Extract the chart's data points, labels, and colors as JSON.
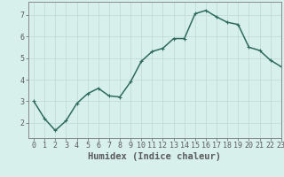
{
  "x": [
    0,
    1,
    2,
    3,
    4,
    5,
    6,
    7,
    8,
    9,
    10,
    11,
    12,
    13,
    14,
    15,
    16,
    17,
    18,
    19,
    20,
    21,
    22,
    23
  ],
  "y": [
    3.0,
    2.2,
    1.65,
    2.1,
    2.9,
    3.35,
    3.6,
    3.25,
    3.2,
    3.9,
    4.85,
    5.3,
    5.45,
    5.9,
    5.9,
    7.05,
    7.2,
    6.9,
    6.65,
    6.55,
    5.5,
    5.35,
    4.9,
    4.6
  ],
  "line_color": "#2e6b5e",
  "marker": "+",
  "marker_color": "#2e6b5e",
  "bg_color": "#d8f0ec",
  "grid_color": "#c0d8d4",
  "axis_color": "#5a5a5a",
  "xlabel": "Humidex (Indice chaleur)",
  "xlim": [
    -0.5,
    23
  ],
  "ylim": [
    1.3,
    7.6
  ],
  "yticks": [
    2,
    3,
    4,
    5,
    6,
    7
  ],
  "xticks": [
    0,
    1,
    2,
    3,
    4,
    5,
    6,
    7,
    8,
    9,
    10,
    11,
    12,
    13,
    14,
    15,
    16,
    17,
    18,
    19,
    20,
    21,
    22,
    23
  ],
  "xlabel_fontsize": 7.5,
  "tick_fontsize": 6,
  "linewidth": 1.1,
  "markersize": 3.5,
  "marker_linewidth": 0.8
}
